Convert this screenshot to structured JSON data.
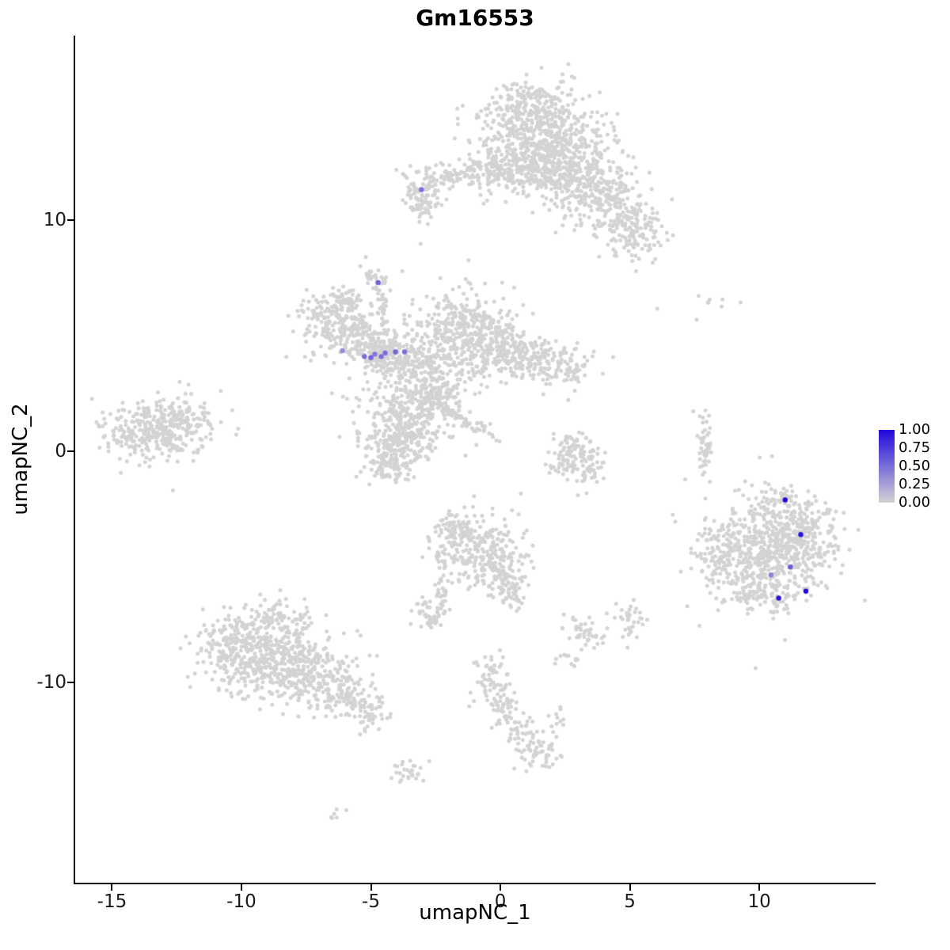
{
  "chart_data": {
    "type": "scatter",
    "title": "Gm16553",
    "xlabel": "umapNC_1",
    "ylabel": "umapNC_2",
    "xlim": [
      -16.42,
      14.46
    ],
    "ylim": [
      -18.66,
      17.98
    ],
    "x_ticks": [
      -15,
      -10,
      -5,
      0,
      5,
      10
    ],
    "y_ticks": [
      10,
      0,
      -10
    ],
    "grid": false,
    "background_color": "#ffffff",
    "point_color": "#d3d3d3",
    "legend": {
      "position": "right",
      "ticks": [
        "1.00",
        "0.75",
        "0.50",
        "0.25",
        "0.00"
      ],
      "color_high": "#2008dc",
      "color_low": "#d3d3d3"
    },
    "clusters": [
      [
        1.2,
        14.3,
        1.0,
        0.8,
        320
      ],
      [
        2.3,
        13.2,
        1.1,
        0.9,
        280
      ],
      [
        0.7,
        12.4,
        0.9,
        0.7,
        200
      ],
      [
        2.0,
        12.0,
        0.8,
        0.6,
        140
      ],
      [
        3.6,
        11.4,
        0.8,
        0.8,
        180
      ],
      [
        4.7,
        10.3,
        0.7,
        0.7,
        130
      ],
      [
        5.3,
        9.4,
        0.55,
        0.55,
        80
      ],
      [
        1.4,
        15.4,
        0.5,
        0.3,
        40
      ],
      [
        -0.7,
        12.1,
        0.9,
        0.3,
        80
      ],
      [
        -1.9,
        11.9,
        0.5,
        0.25,
        40
      ],
      [
        -3.0,
        11.25,
        0.4,
        0.5,
        85
      ],
      [
        -2.9,
        10.4,
        0.2,
        0.4,
        25
      ],
      [
        -4.8,
        7.4,
        0.3,
        0.3,
        30
      ],
      [
        -4.55,
        6.2,
        0.12,
        0.7,
        28
      ],
      [
        -6.4,
        5.6,
        0.75,
        0.65,
        190
      ],
      [
        -5.9,
        6.5,
        0.4,
        0.3,
        40
      ],
      [
        -5.3,
        4.9,
        0.6,
        0.45,
        110
      ],
      [
        -4.4,
        4.15,
        0.6,
        0.45,
        140
      ],
      [
        -2.8,
        3.6,
        0.8,
        0.75,
        240
      ],
      [
        -1.4,
        5.4,
        0.85,
        0.85,
        260
      ],
      [
        -0.3,
        4.6,
        0.8,
        0.7,
        190
      ],
      [
        1.1,
        4.0,
        0.8,
        0.5,
        130
      ],
      [
        2.4,
        3.6,
        0.6,
        0.4,
        80
      ],
      [
        -3.6,
        1.6,
        0.9,
        0.85,
        260
      ],
      [
        -4.0,
        0.3,
        0.7,
        0.65,
        170
      ],
      [
        -4.3,
        -0.6,
        0.5,
        0.4,
        70
      ],
      [
        -1.6,
        1.5,
        0.8,
        0.15,
        70,
        -32
      ],
      [
        -2.5,
        2.5,
        0.4,
        0.3,
        50
      ],
      [
        -13.3,
        0.9,
        0.95,
        0.55,
        260
      ],
      [
        -12.3,
        1.4,
        0.5,
        0.4,
        70
      ],
      [
        -13.2,
        0.7,
        1.5,
        0.9,
        60
      ],
      [
        2.9,
        0.2,
        0.5,
        0.4,
        60
      ],
      [
        3.3,
        -0.8,
        0.45,
        0.45,
        55
      ],
      [
        2.4,
        -0.5,
        0.25,
        0.35,
        25
      ],
      [
        7.9,
        0.2,
        0.15,
        0.7,
        45
      ],
      [
        8.6,
        6.5,
        1.0,
        0.45,
        9
      ],
      [
        10.3,
        -4.3,
        1.15,
        1.05,
        480
      ],
      [
        11.7,
        -3.7,
        0.55,
        0.75,
        140
      ],
      [
        8.4,
        -4.4,
        0.45,
        0.75,
        85
      ],
      [
        10.8,
        -2.4,
        0.5,
        0.4,
        55
      ],
      [
        10.2,
        -6.2,
        0.7,
        0.4,
        80
      ],
      [
        10.4,
        -4.4,
        1.7,
        1.5,
        70
      ],
      [
        -0.8,
        -4.3,
        0.85,
        0.8,
        240
      ],
      [
        -1.7,
        -3.4,
        0.5,
        0.4,
        60
      ],
      [
        0.2,
        -5.5,
        0.5,
        0.5,
        70
      ],
      [
        0.3,
        -6.3,
        0.35,
        0.35,
        30
      ],
      [
        -2.2,
        -6.0,
        0.13,
        0.85,
        35
      ],
      [
        -2.9,
        -7.0,
        0.35,
        0.4,
        45
      ],
      [
        -8.8,
        -8.8,
        1.15,
        0.95,
        430
      ],
      [
        -10.3,
        -8.6,
        0.7,
        0.75,
        140
      ],
      [
        -7.3,
        -9.8,
        0.85,
        0.7,
        190
      ],
      [
        -5.9,
        -10.6,
        0.6,
        0.5,
        85
      ],
      [
        -5.0,
        -11.3,
        0.4,
        0.35,
        45
      ],
      [
        -8.6,
        -7.2,
        0.5,
        0.35,
        55
      ],
      [
        -0.3,
        -9.9,
        0.35,
        0.5,
        55
      ],
      [
        0.1,
        -11.0,
        0.3,
        0.5,
        45
      ],
      [
        0.8,
        -12.2,
        0.35,
        0.5,
        45
      ],
      [
        1.6,
        -13.1,
        0.4,
        0.35,
        45
      ],
      [
        2.2,
        -11.5,
        0.2,
        0.2,
        10
      ],
      [
        3.2,
        -7.7,
        0.4,
        0.35,
        40
      ],
      [
        5.0,
        -7.4,
        0.35,
        0.45,
        35
      ],
      [
        -3.6,
        -13.9,
        0.4,
        0.3,
        28
      ],
      [
        2.7,
        -9.0,
        0.25,
        0.25,
        12
      ],
      [
        -6.3,
        -15.7,
        0.3,
        0.2,
        6
      ]
    ],
    "expressing_cells": [
      {
        "x": -3.05,
        "y": 11.32,
        "value": 0.5
      },
      {
        "x": -4.72,
        "y": 7.3,
        "value": 0.55
      },
      {
        "x": -6.1,
        "y": 4.35,
        "value": 0.35
      },
      {
        "x": -5.25,
        "y": 4.1,
        "value": 0.5
      },
      {
        "x": -5.0,
        "y": 4.05,
        "value": 0.55
      },
      {
        "x": -4.85,
        "y": 4.2,
        "value": 0.45
      },
      {
        "x": -4.6,
        "y": 4.1,
        "value": 0.5
      },
      {
        "x": -4.45,
        "y": 4.25,
        "value": 0.5
      },
      {
        "x": -4.05,
        "y": 4.3,
        "value": 0.55
      },
      {
        "x": -3.7,
        "y": 4.3,
        "value": 0.5
      },
      {
        "x": 11.0,
        "y": -2.1,
        "value": 1.0
      },
      {
        "x": 11.6,
        "y": -3.6,
        "value": 0.95
      },
      {
        "x": 11.2,
        "y": -5.0,
        "value": 0.6
      },
      {
        "x": 10.45,
        "y": -5.35,
        "value": 0.4
      },
      {
        "x": 11.8,
        "y": -6.05,
        "value": 1.0
      },
      {
        "x": 10.75,
        "y": -6.35,
        "value": 0.95
      }
    ]
  }
}
